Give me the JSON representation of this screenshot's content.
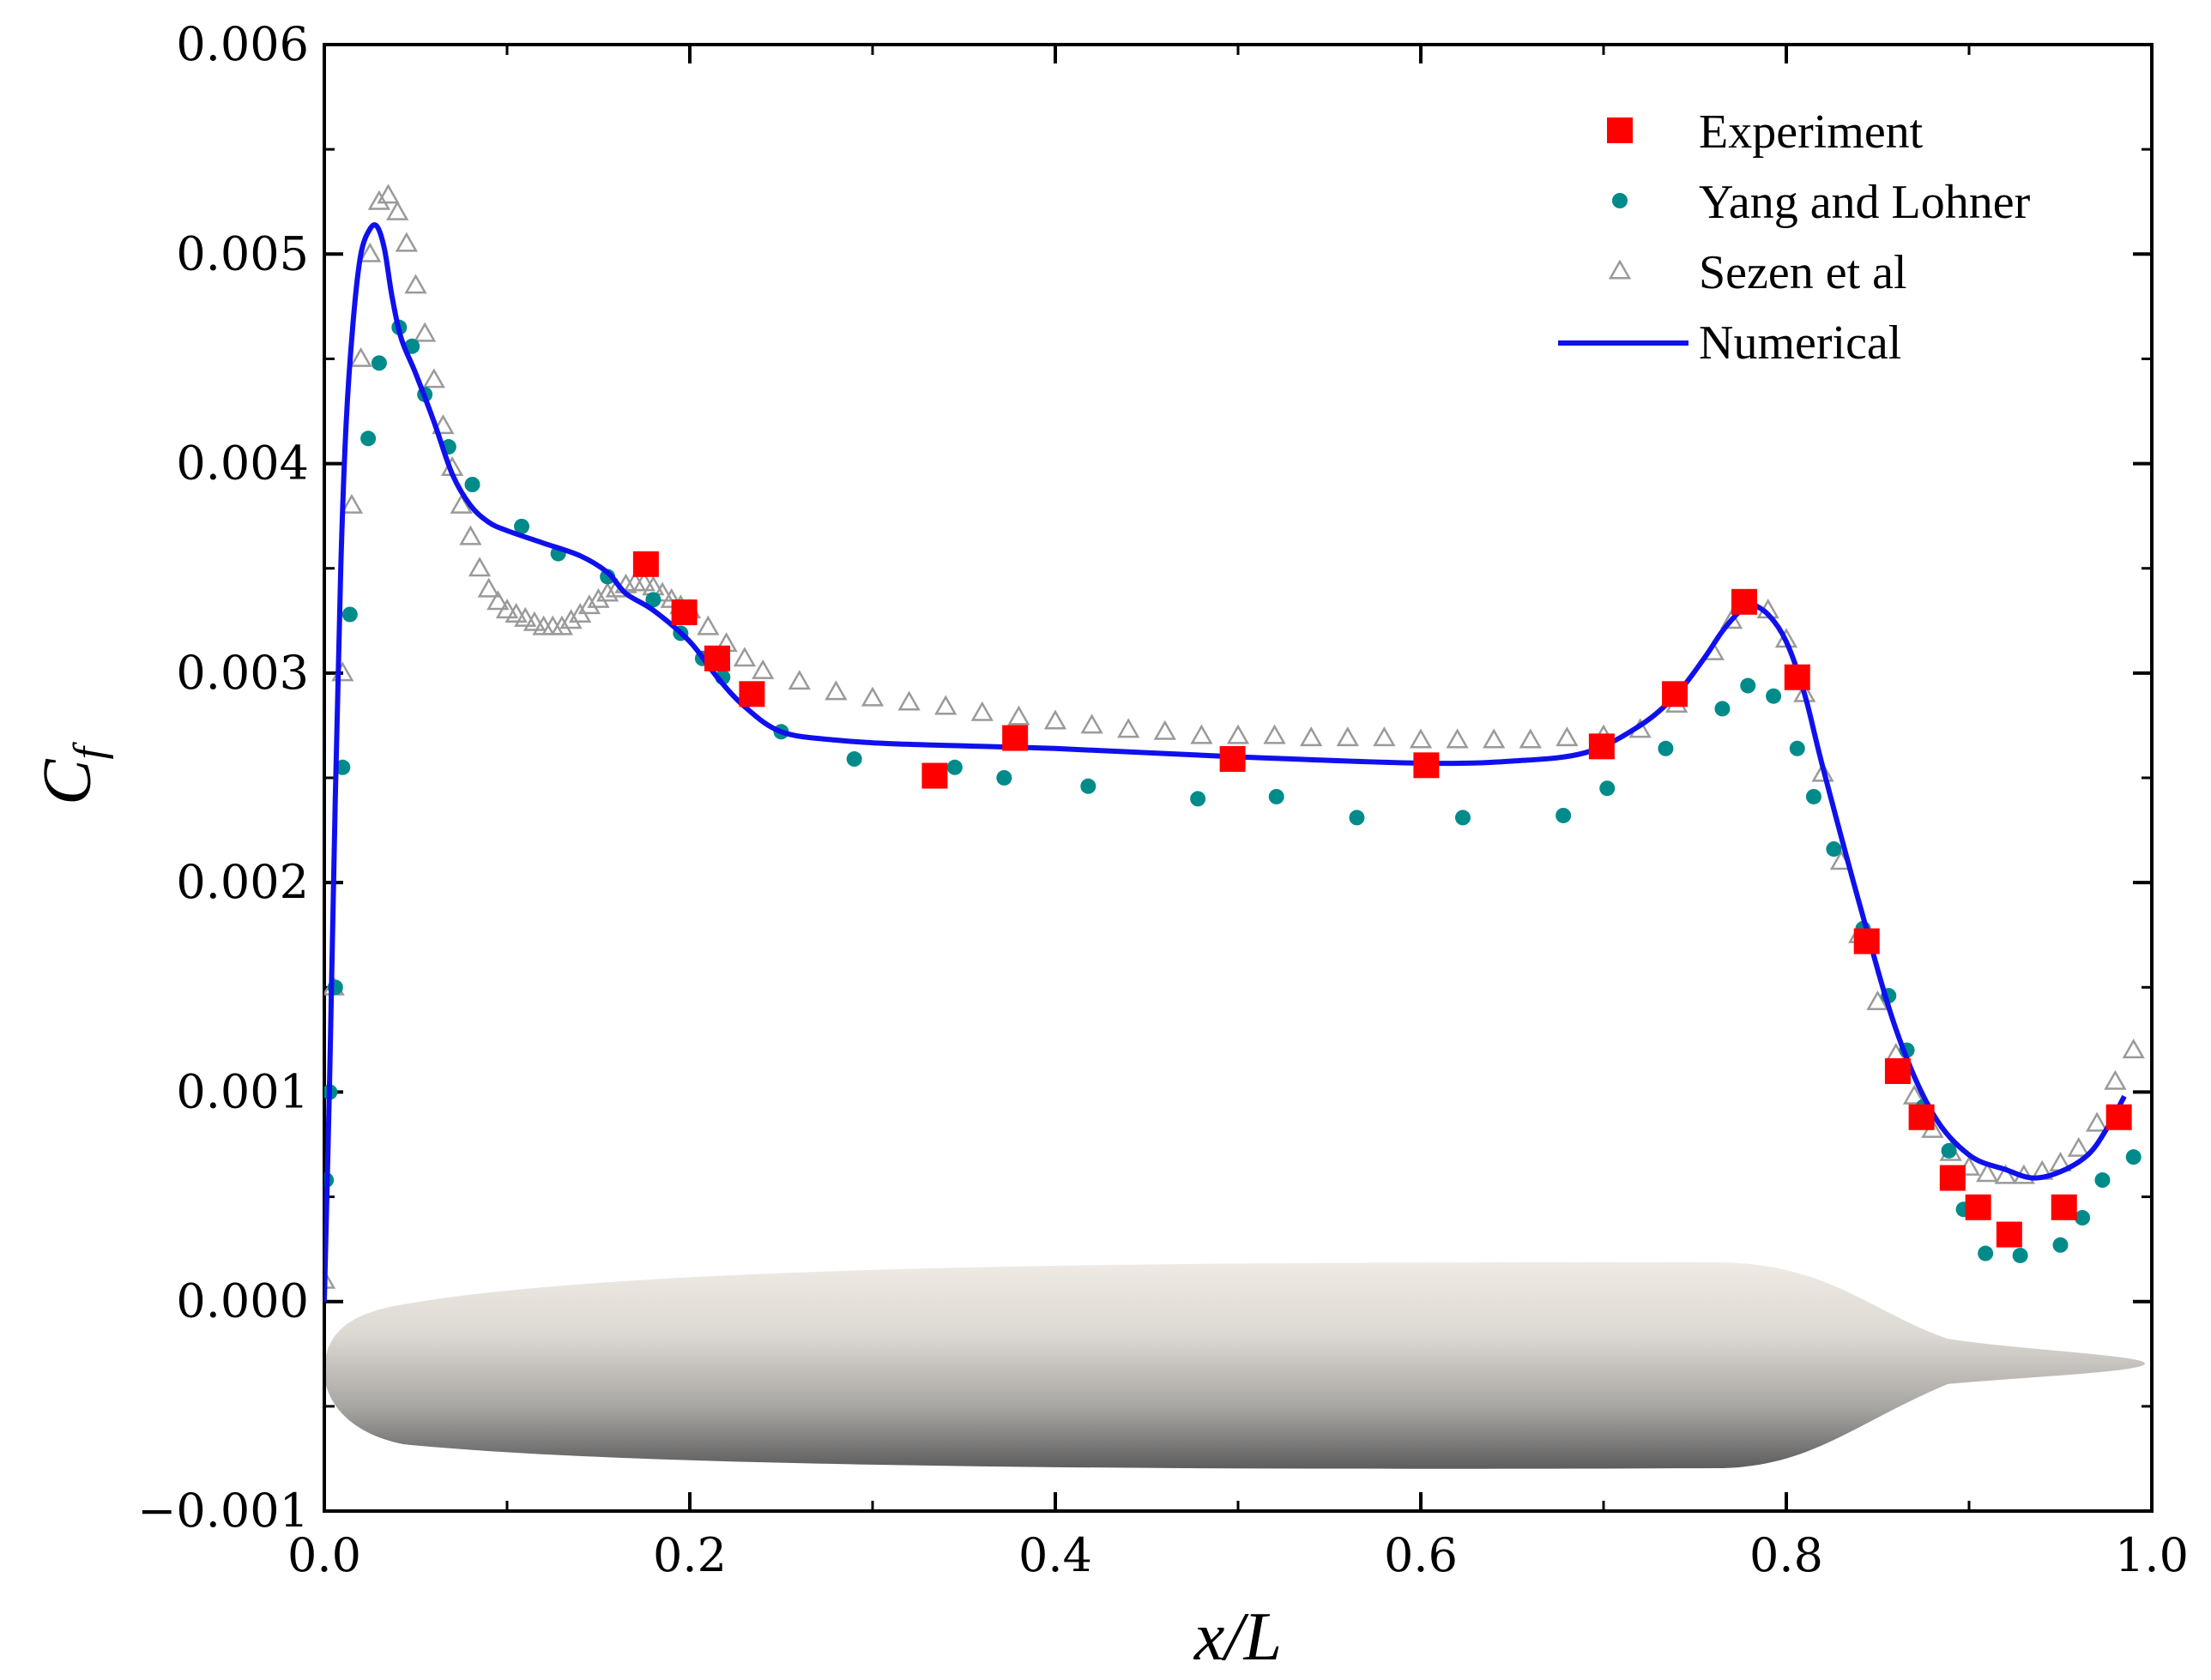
{
  "chart_data": {
    "type": "scatter",
    "title": "",
    "xlabel": "x/L",
    "ylabel": "C_f",
    "xlim": [
      0.0,
      1.0
    ],
    "ylim": [
      -0.001,
      0.006
    ],
    "x_ticks": [
      0.0,
      0.2,
      0.4,
      0.6,
      0.8,
      1.0
    ],
    "x_tick_labels": [
      "0.0",
      "0.2",
      "0.4",
      "0.6",
      "0.8",
      "1.0"
    ],
    "y_ticks": [
      -0.001,
      0.0,
      0.001,
      0.002,
      0.003,
      0.004,
      0.005,
      0.006
    ],
    "y_tick_labels": [
      "−0.001",
      "0.000",
      "0.001",
      "0.002",
      "0.003",
      "0.004",
      "0.005",
      "0.006"
    ],
    "legend_position": "top-right",
    "colors": {
      "experiment": "#ff0000",
      "yang": "#008b8b",
      "sezen": "#9a9a9a",
      "numerical": "#1010ee"
    },
    "series": [
      {
        "name": "Experiment",
        "marker": "square",
        "x": [
          0.176,
          0.197,
          0.215,
          0.234,
          0.334,
          0.378,
          0.497,
          0.603,
          0.699,
          0.739,
          0.777,
          0.806,
          0.844,
          0.861,
          0.874,
          0.891,
          0.905,
          0.922,
          0.952,
          0.982
        ],
        "y": [
          0.00352,
          0.00329,
          0.00307,
          0.0029,
          0.00251,
          0.00269,
          0.00259,
          0.00256,
          0.00265,
          0.0029,
          0.00334,
          0.00298,
          0.00172,
          0.0011,
          0.00088,
          0.00059,
          0.00045,
          0.00032,
          0.00045,
          0.00088
        ]
      },
      {
        "name": "Yang and Lohner",
        "marker": "circle",
        "x": [
          0.001,
          0.003,
          0.006,
          0.01,
          0.014,
          0.024,
          0.03,
          0.041,
          0.048,
          0.055,
          0.068,
          0.081,
          0.108,
          0.128,
          0.155,
          0.18,
          0.195,
          0.207,
          0.218,
          0.25,
          0.29,
          0.345,
          0.372,
          0.418,
          0.478,
          0.521,
          0.565,
          0.623,
          0.678,
          0.702,
          0.734,
          0.765,
          0.779,
          0.793,
          0.806,
          0.815,
          0.826,
          0.842,
          0.856,
          0.866,
          0.875,
          0.889,
          0.897,
          0.909,
          0.928,
          0.95,
          0.962,
          0.973,
          0.99
        ],
        "y": [
          0.00058,
          0.001,
          0.0015,
          0.00255,
          0.00328,
          0.00412,
          0.00448,
          0.00465,
          0.00456,
          0.00433,
          0.00408,
          0.0039,
          0.0037,
          0.00357,
          0.00346,
          0.00335,
          0.00319,
          0.00307,
          0.00298,
          0.00272,
          0.00259,
          0.00255,
          0.0025,
          0.00246,
          0.0024,
          0.00241,
          0.00231,
          0.00231,
          0.00232,
          0.00245,
          0.00264,
          0.00283,
          0.00294,
          0.00289,
          0.00264,
          0.00241,
          0.00216,
          0.00178,
          0.00146,
          0.0012,
          0.00093,
          0.00072,
          0.00044,
          0.00023,
          0.00022,
          0.00027,
          0.0004,
          0.00058,
          0.00069
        ]
      },
      {
        "name": "Sezen et al",
        "marker": "triangle",
        "x": [
          0.0,
          0.005,
          0.01,
          0.015,
          0.02,
          0.025,
          0.03,
          0.035,
          0.04,
          0.045,
          0.05,
          0.055,
          0.06,
          0.065,
          0.07,
          0.075,
          0.08,
          0.085,
          0.09,
          0.095,
          0.1,
          0.105,
          0.11,
          0.115,
          0.12,
          0.125,
          0.13,
          0.135,
          0.14,
          0.145,
          0.15,
          0.155,
          0.16,
          0.165,
          0.17,
          0.175,
          0.18,
          0.185,
          0.19,
          0.195,
          0.2,
          0.21,
          0.22,
          0.23,
          0.24,
          0.26,
          0.28,
          0.3,
          0.32,
          0.34,
          0.36,
          0.38,
          0.4,
          0.42,
          0.44,
          0.46,
          0.48,
          0.5,
          0.52,
          0.54,
          0.56,
          0.58,
          0.6,
          0.62,
          0.64,
          0.66,
          0.68,
          0.7,
          0.72,
          0.74,
          0.76,
          0.77,
          0.78,
          0.79,
          0.8,
          0.81,
          0.82,
          0.83,
          0.84,
          0.85,
          0.86,
          0.87,
          0.88,
          0.89,
          0.9,
          0.91,
          0.92,
          0.93,
          0.94,
          0.95,
          0.96,
          0.97,
          0.98,
          0.99
        ],
        "y": [
          0.0001,
          0.0015,
          0.003,
          0.0038,
          0.0045,
          0.005,
          0.00525,
          0.00528,
          0.0052,
          0.00505,
          0.00485,
          0.00462,
          0.0044,
          0.00418,
          0.00398,
          0.0038,
          0.00365,
          0.0035,
          0.0034,
          0.00334,
          0.0033,
          0.00328,
          0.00326,
          0.00324,
          0.00322,
          0.00322,
          0.00322,
          0.00325,
          0.00328,
          0.00332,
          0.00335,
          0.00338,
          0.0034,
          0.00342,
          0.00343,
          0.00343,
          0.00341,
          0.00338,
          0.00335,
          0.00332,
          0.0033,
          0.00322,
          0.00314,
          0.00307,
          0.00301,
          0.00296,
          0.00291,
          0.00288,
          0.00286,
          0.00284,
          0.00281,
          0.00279,
          0.00277,
          0.00275,
          0.00273,
          0.00272,
          0.0027,
          0.0027,
          0.0027,
          0.00269,
          0.00269,
          0.00269,
          0.00268,
          0.00268,
          0.00268,
          0.00268,
          0.00269,
          0.0027,
          0.00273,
          0.00285,
          0.0031,
          0.00325,
          0.00334,
          0.0033,
          0.00316,
          0.0029,
          0.00252,
          0.0021,
          0.00175,
          0.00143,
          0.00118,
          0.00098,
          0.00082,
          0.00071,
          0.00064,
          0.00061,
          0.0006,
          0.0006,
          0.00062,
          0.00066,
          0.00073,
          0.00085,
          0.00105,
          0.0012
        ]
      },
      {
        "name": "Numerical",
        "marker": "line",
        "x": [
          0.0,
          0.003,
          0.006,
          0.009,
          0.012,
          0.016,
          0.02,
          0.025,
          0.029,
          0.033,
          0.037,
          0.042,
          0.05,
          0.06,
          0.07,
          0.08,
          0.09,
          0.1,
          0.12,
          0.14,
          0.155,
          0.165,
          0.18,
          0.2,
          0.215,
          0.23,
          0.25,
          0.28,
          0.32,
          0.4,
          0.5,
          0.6,
          0.65,
          0.69,
          0.72,
          0.74,
          0.755,
          0.765,
          0.775,
          0.78,
          0.79,
          0.8,
          0.81,
          0.82,
          0.84,
          0.86,
          0.88,
          0.9,
          0.92,
          0.935,
          0.95,
          0.965,
          0.975,
          0.985
        ],
        "y": [
          0.0,
          0.0011,
          0.0024,
          0.0035,
          0.0042,
          0.0047,
          0.005,
          0.00512,
          0.00513,
          0.00502,
          0.0048,
          0.0046,
          0.00443,
          0.0042,
          0.00395,
          0.0038,
          0.00372,
          0.00368,
          0.00362,
          0.00356,
          0.00348,
          0.00338,
          0.0033,
          0.00315,
          0.00298,
          0.00284,
          0.00272,
          0.00268,
          0.00266,
          0.00264,
          0.0026,
          0.00257,
          0.00258,
          0.00262,
          0.00275,
          0.0029,
          0.00307,
          0.0032,
          0.0033,
          0.00333,
          0.00328,
          0.00315,
          0.0029,
          0.00255,
          0.0019,
          0.0013,
          0.0009,
          0.0007,
          0.00063,
          0.00059,
          0.00062,
          0.0007,
          0.00082,
          0.00098
        ]
      }
    ]
  }
}
